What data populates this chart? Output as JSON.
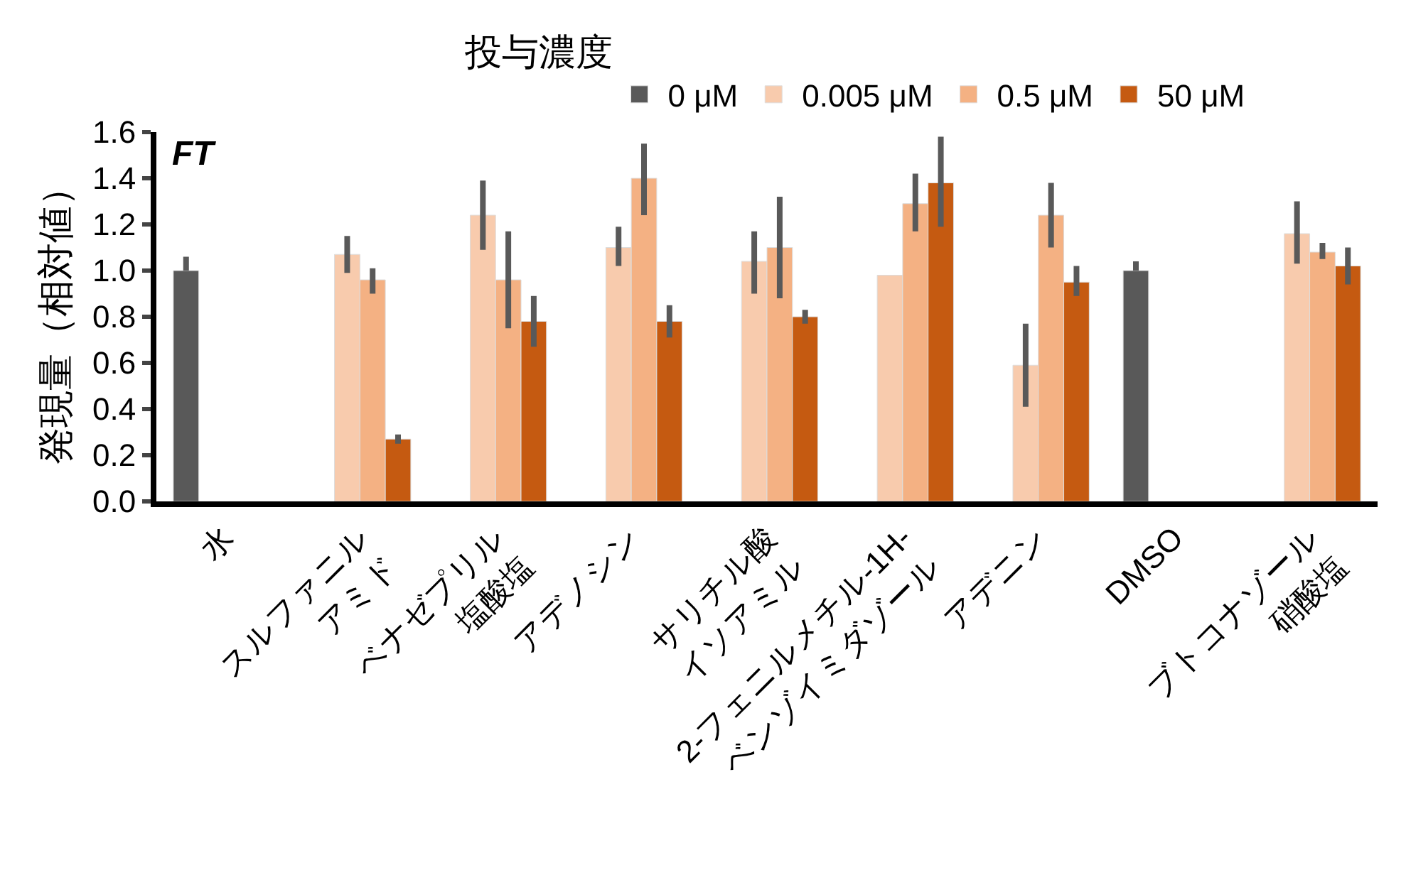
{
  "chart_data": {
    "type": "bar",
    "ylabel": "発現量（相対値）",
    "legend_title": "投与濃度",
    "annotations": [
      "FT"
    ],
    "categories": [
      "水",
      "スルファニル\nアミド",
      "ベナゼプリル\n塩酸塩",
      "アデノシン",
      "サリチル酸\nイソアミル",
      "2-フェニルメチル-1H-\nベンゾイミダゾール",
      "アデニン",
      "DMSO",
      "ブトコナゾール\n硝酸塩"
    ],
    "series": [
      {
        "name": "0 μM",
        "color": "#595959",
        "values": [
          1.0,
          null,
          null,
          null,
          null,
          null,
          null,
          1.0,
          null
        ],
        "errors": [
          [
            1.0,
            1.06
          ],
          null,
          null,
          null,
          null,
          null,
          null,
          [
            1.0,
            1.04
          ],
          null
        ]
      },
      {
        "name": "0.005 μM",
        "color": "#f8cbad",
        "values": [
          null,
          1.07,
          1.24,
          1.1,
          1.04,
          0.98,
          0.59,
          null,
          1.16
        ],
        "errors": [
          null,
          [
            0.99,
            1.15
          ],
          [
            1.09,
            1.39
          ],
          [
            1.02,
            1.19
          ],
          [
            0.9,
            1.17
          ],
          null,
          [
            0.41,
            0.77
          ],
          null,
          [
            1.03,
            1.3
          ]
        ]
      },
      {
        "name": "0.5 μM",
        "color": "#f4b183",
        "values": [
          null,
          0.96,
          0.96,
          1.4,
          1.1,
          1.29,
          1.24,
          null,
          1.08
        ],
        "errors": [
          null,
          [
            0.9,
            1.01
          ],
          [
            0.75,
            1.17
          ],
          [
            1.24,
            1.55
          ],
          [
            0.88,
            1.32
          ],
          [
            1.17,
            1.42
          ],
          [
            1.1,
            1.38
          ],
          null,
          [
            1.05,
            1.12
          ]
        ]
      },
      {
        "name": "50 μM",
        "color": "#c55a11",
        "values": [
          null,
          0.27,
          0.78,
          0.78,
          0.8,
          1.38,
          0.95,
          null,
          1.02
        ],
        "errors": [
          null,
          [
            0.25,
            0.29
          ],
          [
            0.67,
            0.89
          ],
          [
            0.71,
            0.85
          ],
          [
            0.77,
            0.83
          ],
          [
            1.19,
            1.58
          ],
          [
            0.89,
            1.02
          ],
          null,
          [
            0.94,
            1.1
          ]
        ]
      }
    ],
    "ylim": [
      0,
      1.6
    ],
    "yticks": [
      {
        "value": 0,
        "label": "0.0"
      },
      {
        "value": 0.2,
        "label": "0.2"
      },
      {
        "value": 0.4,
        "label": "0.4"
      },
      {
        "value": 0.6,
        "label": "0.6"
      },
      {
        "value": 0.8,
        "label": "0.8"
      },
      {
        "value": 1.0,
        "label": "1.0"
      },
      {
        "value": 1.2,
        "label": "1.2"
      },
      {
        "value": 1.4,
        "label": "1.4"
      },
      {
        "value": 1.6,
        "label": "1.6"
      }
    ],
    "legend": "top"
  }
}
